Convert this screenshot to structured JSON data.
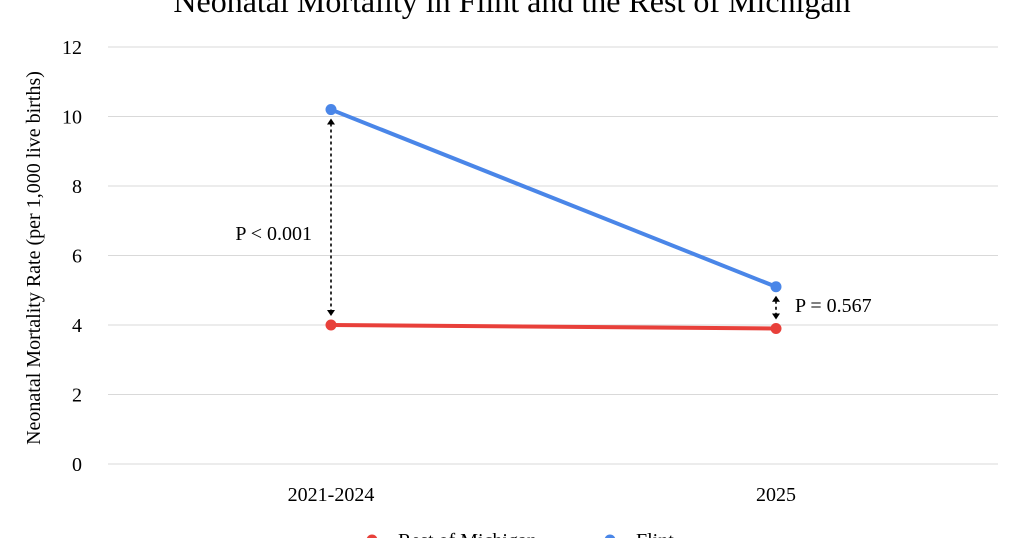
{
  "chart_data": {
    "type": "line",
    "title": "Neonatal Mortality in Flint and the Rest of Michigan",
    "xlabel": "",
    "ylabel": "Neonatal Mortality Rate (per 1,000 live births)",
    "categories": [
      "2021-2024",
      "2025"
    ],
    "ylim": [
      0,
      12
    ],
    "yticks": [
      0,
      2,
      4,
      6,
      8,
      10,
      12
    ],
    "grid": true,
    "legend_position": "bottom",
    "series": [
      {
        "name": "Rest of Michigan",
        "values": [
          4.0,
          3.9
        ],
        "color": "#e8403a"
      },
      {
        "name": "Flint",
        "values": [
          10.2,
          5.1
        ],
        "color": "#4a86e8"
      }
    ],
    "annotations": [
      {
        "text": "P < 0.001",
        "category": "2021-2024",
        "from": 4.0,
        "to": 10.2
      },
      {
        "text": "P = 0.567",
        "category": "2025",
        "from": 3.9,
        "to": 5.1
      }
    ]
  }
}
